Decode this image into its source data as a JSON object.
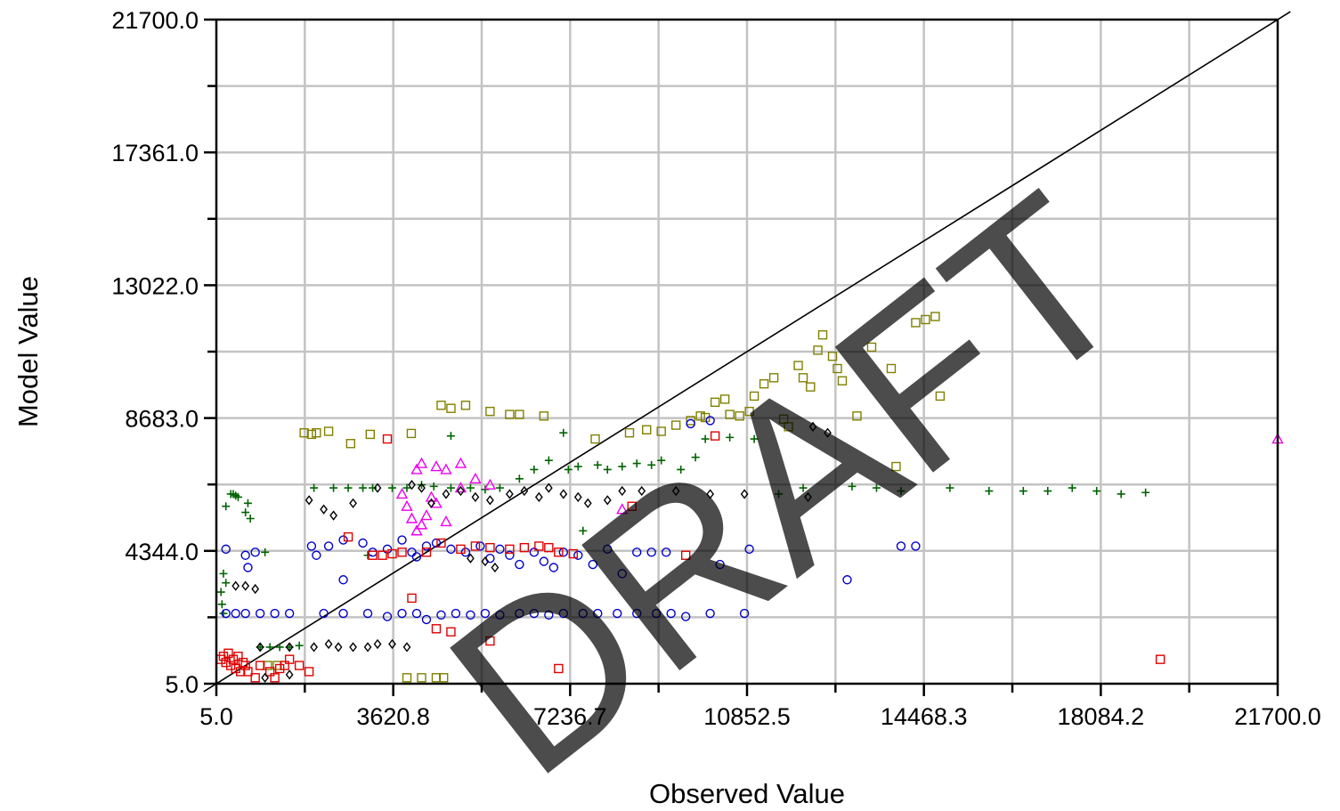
{
  "chart_data": {
    "type": "scatter",
    "xlabel": "Observed Value",
    "ylabel": "Model Value",
    "xlim": [
      5.0,
      21700.0
    ],
    "ylim": [
      5.0,
      21700.0
    ],
    "x_ticks": [
      "5.0",
      "3620.8",
      "7236.7",
      "10852.5",
      "14468.3",
      "18084.2",
      "21700.0"
    ],
    "y_ticks": [
      "5.0",
      "4344.0",
      "8683.0",
      "13022.0",
      "17361.0",
      "21700.0"
    ],
    "grid": true,
    "reference_line": {
      "from": [
        5.0,
        5.0
      ],
      "to": [
        21700.0,
        21700.0
      ]
    },
    "watermark": "DRAFT",
    "colors": {
      "olive": "#808000",
      "green": "#006400",
      "blue": "#0000cc",
      "red": "#e00000",
      "magenta": "#ee00ee",
      "black": "#000000"
    },
    "series": [
      {
        "marker": "square",
        "color": "olive",
        "points": [
          [
            1800,
            8200
          ],
          [
            1950,
            8150
          ],
          [
            2050,
            8200
          ],
          [
            2300,
            8250
          ],
          [
            2750,
            7850
          ],
          [
            3150,
            8150
          ],
          [
            3990,
            8180
          ],
          [
            4600,
            9100
          ],
          [
            4800,
            9000
          ],
          [
            5100,
            9100
          ],
          [
            5600,
            8900
          ],
          [
            6000,
            8800
          ],
          [
            6200,
            8800
          ],
          [
            6700,
            8750
          ],
          [
            7750,
            8000
          ],
          [
            8450,
            8200
          ],
          [
            8800,
            8300
          ],
          [
            9100,
            8250
          ],
          [
            9400,
            8450
          ],
          [
            9700,
            8600
          ],
          [
            9900,
            8750
          ],
          [
            10000,
            8700
          ],
          [
            10200,
            9200
          ],
          [
            10400,
            9300
          ],
          [
            10500,
            8800
          ],
          [
            10700,
            8750
          ],
          [
            10900,
            8900
          ],
          [
            11000,
            9400
          ],
          [
            11200,
            9800
          ],
          [
            11400,
            10000
          ],
          [
            11600,
            8650
          ],
          [
            11700,
            8400
          ],
          [
            11900,
            10400
          ],
          [
            12000,
            10000
          ],
          [
            12150,
            9700
          ],
          [
            12300,
            10900
          ],
          [
            12400,
            11400
          ],
          [
            12600,
            10700
          ],
          [
            12700,
            10300
          ],
          [
            12800,
            9900
          ],
          [
            13100,
            8750
          ],
          [
            13400,
            11000
          ],
          [
            13800,
            10300
          ],
          [
            14300,
            11800
          ],
          [
            14500,
            11900
          ],
          [
            14700,
            12000
          ],
          [
            14800,
            9400
          ],
          [
            13900,
            7100
          ],
          [
            3900,
            200
          ],
          [
            4200,
            200
          ],
          [
            4500,
            200
          ],
          [
            4650,
            200
          ],
          [
            1050,
            600
          ],
          [
            1250,
            600
          ]
        ]
      },
      {
        "marker": "plus",
        "color": "green",
        "points": [
          [
            200,
            5800
          ],
          [
            300,
            6200
          ],
          [
            350,
            6200
          ],
          [
            400,
            6150
          ],
          [
            450,
            6100
          ],
          [
            600,
            5600
          ],
          [
            650,
            5900
          ],
          [
            700,
            5400
          ],
          [
            150,
            3600
          ],
          [
            200,
            3300
          ],
          [
            100,
            3000
          ],
          [
            120,
            2600
          ],
          [
            150,
            2300
          ],
          [
            900,
            1200
          ],
          [
            1100,
            1200
          ],
          [
            1300,
            1200
          ],
          [
            1500,
            1200
          ],
          [
            1700,
            1250
          ],
          [
            2000,
            6400
          ],
          [
            2400,
            6400
          ],
          [
            2700,
            6400
          ],
          [
            3000,
            6400
          ],
          [
            3200,
            6400
          ],
          [
            3600,
            6400
          ],
          [
            3900,
            6400
          ],
          [
            4200,
            6500
          ],
          [
            4450,
            6450
          ],
          [
            4800,
            6400
          ],
          [
            5200,
            6400
          ],
          [
            5500,
            6350
          ],
          [
            5800,
            6400
          ],
          [
            6200,
            6700
          ],
          [
            6500,
            7000
          ],
          [
            6800,
            7300
          ],
          [
            7200,
            7000
          ],
          [
            7400,
            7100
          ],
          [
            7800,
            7150
          ],
          [
            8000,
            7000
          ],
          [
            8300,
            7100
          ],
          [
            8600,
            7200
          ],
          [
            8900,
            7150
          ],
          [
            9100,
            7300
          ],
          [
            9500,
            7000
          ],
          [
            9800,
            7400
          ],
          [
            10000,
            8000
          ],
          [
            10500,
            8050
          ],
          [
            11000,
            8000
          ],
          [
            7500,
            5000
          ],
          [
            11500,
            6200
          ],
          [
            12000,
            6400
          ],
          [
            13000,
            6450
          ],
          [
            13500,
            6400
          ],
          [
            14000,
            6300
          ],
          [
            15000,
            6400
          ],
          [
            15800,
            6300
          ],
          [
            16500,
            6300
          ],
          [
            17000,
            6300
          ],
          [
            17500,
            6400
          ],
          [
            18000,
            6300
          ],
          [
            18500,
            6200
          ],
          [
            19000,
            6250
          ],
          [
            7100,
            8200
          ],
          [
            4800,
            8100
          ],
          [
            1000,
            4300
          ],
          [
            3100,
            4200
          ]
        ]
      },
      {
        "marker": "circle",
        "color": "blue",
        "points": [
          [
            200,
            4400
          ],
          [
            600,
            4200
          ],
          [
            650,
            3800
          ],
          [
            800,
            4300
          ],
          [
            1950,
            4500
          ],
          [
            2050,
            4200
          ],
          [
            2300,
            4500
          ],
          [
            2600,
            4700
          ],
          [
            3000,
            4600
          ],
          [
            3200,
            4300
          ],
          [
            3500,
            4400
          ],
          [
            3800,
            4700
          ],
          [
            4000,
            4300
          ],
          [
            4100,
            4150
          ],
          [
            4300,
            4500
          ],
          [
            4500,
            4600
          ],
          [
            4800,
            4400
          ],
          [
            5100,
            4300
          ],
          [
            5400,
            4500
          ],
          [
            5600,
            4100
          ],
          [
            5800,
            4400
          ],
          [
            6000,
            4200
          ],
          [
            6200,
            3900
          ],
          [
            6500,
            4300
          ],
          [
            6700,
            4000
          ],
          [
            6900,
            3800
          ],
          [
            7100,
            4300
          ],
          [
            7400,
            4200
          ],
          [
            7700,
            3900
          ],
          [
            8000,
            4400
          ],
          [
            8300,
            3600
          ],
          [
            8600,
            4300
          ],
          [
            8900,
            4300
          ],
          [
            9200,
            4300
          ],
          [
            10300,
            3900
          ],
          [
            10900,
            4400
          ],
          [
            12900,
            3400
          ],
          [
            14000,
            4500
          ],
          [
            14300,
            4500
          ],
          [
            2600,
            3400
          ],
          [
            2600,
            2300
          ],
          [
            3100,
            2300
          ],
          [
            3500,
            2200
          ],
          [
            3800,
            2300
          ],
          [
            4100,
            2300
          ],
          [
            4300,
            2100
          ],
          [
            4600,
            2250
          ],
          [
            4900,
            2300
          ],
          [
            5200,
            2250
          ],
          [
            5500,
            2300
          ],
          [
            5800,
            2250
          ],
          [
            6200,
            2300
          ],
          [
            6500,
            2300
          ],
          [
            6800,
            2250
          ],
          [
            7100,
            2300
          ],
          [
            7500,
            2300
          ],
          [
            7800,
            2300
          ],
          [
            8200,
            2300
          ],
          [
            8600,
            2300
          ],
          [
            9000,
            2300
          ],
          [
            9300,
            2300
          ],
          [
            9600,
            2200
          ],
          [
            10100,
            2300
          ],
          [
            10800,
            2300
          ],
          [
            200,
            2300
          ],
          [
            400,
            2300
          ],
          [
            600,
            2300
          ],
          [
            900,
            2300
          ],
          [
            1200,
            2300
          ],
          [
            1500,
            2300
          ],
          [
            2200,
            2300
          ],
          [
            10100,
            8600
          ],
          [
            9700,
            8500
          ]
        ]
      },
      {
        "marker": "square",
        "color": "red",
        "points": [
          [
            100,
            800
          ],
          [
            200,
            700
          ],
          [
            300,
            600
          ],
          [
            400,
            500
          ],
          [
            500,
            400
          ],
          [
            600,
            600
          ],
          [
            150,
            900
          ],
          [
            250,
            1000
          ],
          [
            350,
            800
          ],
          [
            450,
            900
          ],
          [
            550,
            700
          ],
          [
            650,
            400
          ],
          [
            800,
            200
          ],
          [
            900,
            600
          ],
          [
            1100,
            400
          ],
          [
            1200,
            200
          ],
          [
            1300,
            500
          ],
          [
            1500,
            800
          ],
          [
            1700,
            600
          ],
          [
            1900,
            400
          ],
          [
            3200,
            4200
          ],
          [
            3400,
            4200
          ],
          [
            3600,
            4250
          ],
          [
            3800,
            4300
          ],
          [
            4300,
            4300
          ],
          [
            4600,
            4600
          ],
          [
            5000,
            4400
          ],
          [
            5300,
            4500
          ],
          [
            5600,
            4450
          ],
          [
            6000,
            4400
          ],
          [
            6300,
            4450
          ],
          [
            6600,
            4500
          ],
          [
            6800,
            4450
          ],
          [
            7000,
            4300
          ],
          [
            7300,
            4250
          ],
          [
            4000,
            2800
          ],
          [
            4500,
            1800
          ],
          [
            4800,
            1700
          ],
          [
            5600,
            1400
          ],
          [
            3500,
            8000
          ],
          [
            8500,
            5800
          ],
          [
            9600,
            4200
          ],
          [
            10200,
            8100
          ],
          [
            19300,
            800
          ],
          [
            7000,
            500
          ],
          [
            2700,
            4800
          ],
          [
            1400,
            600
          ]
        ]
      },
      {
        "marker": "triangle",
        "color": "magenta",
        "points": [
          [
            3800,
            6200
          ],
          [
            3900,
            5800
          ],
          [
            4000,
            5400
          ],
          [
            4100,
            5000
          ],
          [
            4200,
            5200
          ],
          [
            4300,
            5500
          ],
          [
            4400,
            6100
          ],
          [
            4500,
            5900
          ],
          [
            4700,
            5300
          ],
          [
            5000,
            6400
          ],
          [
            5300,
            6700
          ],
          [
            5600,
            6500
          ],
          [
            4100,
            7000
          ],
          [
            4200,
            7200
          ],
          [
            4500,
            7100
          ],
          [
            4700,
            7000
          ],
          [
            5000,
            7200
          ],
          [
            8300,
            5700
          ],
          [
            21700,
            8000
          ]
        ]
      },
      {
        "marker": "diamond",
        "color": "black",
        "points": [
          [
            400,
            3200
          ],
          [
            600,
            3200
          ],
          [
            800,
            3100
          ],
          [
            1000,
            200
          ],
          [
            1500,
            300
          ],
          [
            1900,
            6000
          ],
          [
            2200,
            5700
          ],
          [
            2400,
            5500
          ],
          [
            2800,
            5900
          ],
          [
            3300,
            6400
          ],
          [
            4000,
            6500
          ],
          [
            4200,
            6400
          ],
          [
            4400,
            5900
          ],
          [
            4700,
            6200
          ],
          [
            5000,
            6300
          ],
          [
            5300,
            6100
          ],
          [
            5600,
            6000
          ],
          [
            6000,
            6200
          ],
          [
            6300,
            6300
          ],
          [
            6600,
            6100
          ],
          [
            6800,
            6400
          ],
          [
            7100,
            6200
          ],
          [
            7400,
            6100
          ],
          [
            7600,
            5900
          ],
          [
            8000,
            6000
          ],
          [
            8300,
            6300
          ],
          [
            8700,
            6300
          ],
          [
            9400,
            6300
          ],
          [
            10100,
            6200
          ],
          [
            10800,
            6200
          ],
          [
            12100,
            6100
          ],
          [
            12500,
            8200
          ],
          [
            12200,
            8400
          ],
          [
            5200,
            4100
          ],
          [
            5500,
            4000
          ],
          [
            5700,
            3800
          ],
          [
            900,
            1200
          ],
          [
            1500,
            1200
          ],
          [
            2000,
            1200
          ],
          [
            2300,
            1300
          ],
          [
            2500,
            1200
          ],
          [
            2800,
            1200
          ],
          [
            3100,
            1200
          ],
          [
            3300,
            1300
          ],
          [
            3600,
            1300
          ],
          [
            3900,
            1200
          ]
        ]
      }
    ]
  }
}
